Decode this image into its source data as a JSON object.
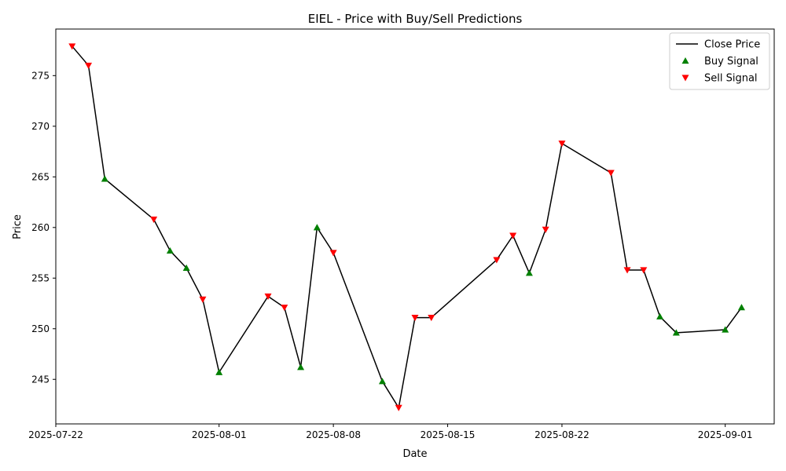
{
  "chart_data": {
    "type": "line",
    "title": "EIEL - Price with Buy/Sell Predictions",
    "xlabel": "Date",
    "ylabel": "Price",
    "x_ticks": [
      "2025-07-22",
      "2025-08-01",
      "2025-08-08",
      "2025-08-15",
      "2025-08-22",
      "2025-09-01"
    ],
    "y_ticks": [
      245,
      250,
      255,
      260,
      265,
      270,
      275
    ],
    "xlim": [
      "2025-07-22",
      "2025-09-04"
    ],
    "ylim": [
      240.6,
      279.6
    ],
    "grid": false,
    "legend_position": "top-right",
    "colors": {
      "line": "#000000",
      "buy": "#008000",
      "sell": "#ff0000"
    },
    "series": [
      {
        "name": "Close Price",
        "kind": "line",
        "points": [
          {
            "x": "2025-07-23",
            "y": 277.9
          },
          {
            "x": "2025-07-24",
            "y": 276.0
          },
          {
            "x": "2025-07-25",
            "y": 264.8
          },
          {
            "x": "2025-07-28",
            "y": 260.8
          },
          {
            "x": "2025-07-29",
            "y": 257.7
          },
          {
            "x": "2025-07-30",
            "y": 256.0
          },
          {
            "x": "2025-07-31",
            "y": 252.9
          },
          {
            "x": "2025-08-01",
            "y": 245.7
          },
          {
            "x": "2025-08-04",
            "y": 253.2
          },
          {
            "x": "2025-08-05",
            "y": 252.1
          },
          {
            "x": "2025-08-06",
            "y": 246.2
          },
          {
            "x": "2025-08-07",
            "y": 260.0
          },
          {
            "x": "2025-08-08",
            "y": 257.5
          },
          {
            "x": "2025-08-11",
            "y": 244.8
          },
          {
            "x": "2025-08-12",
            "y": 242.2
          },
          {
            "x": "2025-08-13",
            "y": 251.1
          },
          {
            "x": "2025-08-14",
            "y": 251.1
          },
          {
            "x": "2025-08-18",
            "y": 256.8
          },
          {
            "x": "2025-08-19",
            "y": 259.2
          },
          {
            "x": "2025-08-20",
            "y": 255.5
          },
          {
            "x": "2025-08-21",
            "y": 259.8
          },
          {
            "x": "2025-08-22",
            "y": 268.3
          },
          {
            "x": "2025-08-25",
            "y": 265.4
          },
          {
            "x": "2025-08-26",
            "y": 255.8
          },
          {
            "x": "2025-08-27",
            "y": 255.8
          },
          {
            "x": "2025-08-28",
            "y": 251.2
          },
          {
            "x": "2025-08-29",
            "y": 249.6
          },
          {
            "x": "2025-09-01",
            "y": 249.9
          },
          {
            "x": "2025-09-02",
            "y": 252.1
          }
        ]
      },
      {
        "name": "Buy Signal",
        "kind": "scatter",
        "marker": "triangle-up",
        "points": [
          {
            "x": "2025-07-25",
            "y": 264.8
          },
          {
            "x": "2025-07-29",
            "y": 257.7
          },
          {
            "x": "2025-07-30",
            "y": 256.0
          },
          {
            "x": "2025-08-01",
            "y": 245.7
          },
          {
            "x": "2025-08-06",
            "y": 246.2
          },
          {
            "x": "2025-08-07",
            "y": 260.0
          },
          {
            "x": "2025-08-11",
            "y": 244.8
          },
          {
            "x": "2025-08-20",
            "y": 255.5
          },
          {
            "x": "2025-08-28",
            "y": 251.2
          },
          {
            "x": "2025-08-29",
            "y": 249.6
          },
          {
            "x": "2025-09-01",
            "y": 249.9
          },
          {
            "x": "2025-09-02",
            "y": 252.1
          }
        ]
      },
      {
        "name": "Sell Signal",
        "kind": "scatter",
        "marker": "triangle-down",
        "points": [
          {
            "x": "2025-07-23",
            "y": 277.9
          },
          {
            "x": "2025-07-24",
            "y": 276.0
          },
          {
            "x": "2025-07-28",
            "y": 260.8
          },
          {
            "x": "2025-07-31",
            "y": 252.9
          },
          {
            "x": "2025-08-04",
            "y": 253.2
          },
          {
            "x": "2025-08-05",
            "y": 252.1
          },
          {
            "x": "2025-08-08",
            "y": 257.5
          },
          {
            "x": "2025-08-12",
            "y": 242.2
          },
          {
            "x": "2025-08-13",
            "y": 251.1
          },
          {
            "x": "2025-08-14",
            "y": 251.1
          },
          {
            "x": "2025-08-18",
            "y": 256.8
          },
          {
            "x": "2025-08-19",
            "y": 259.2
          },
          {
            "x": "2025-08-21",
            "y": 259.8
          },
          {
            "x": "2025-08-22",
            "y": 268.3
          },
          {
            "x": "2025-08-25",
            "y": 265.4
          },
          {
            "x": "2025-08-26",
            "y": 255.8
          },
          {
            "x": "2025-08-27",
            "y": 255.8
          }
        ]
      }
    ]
  }
}
